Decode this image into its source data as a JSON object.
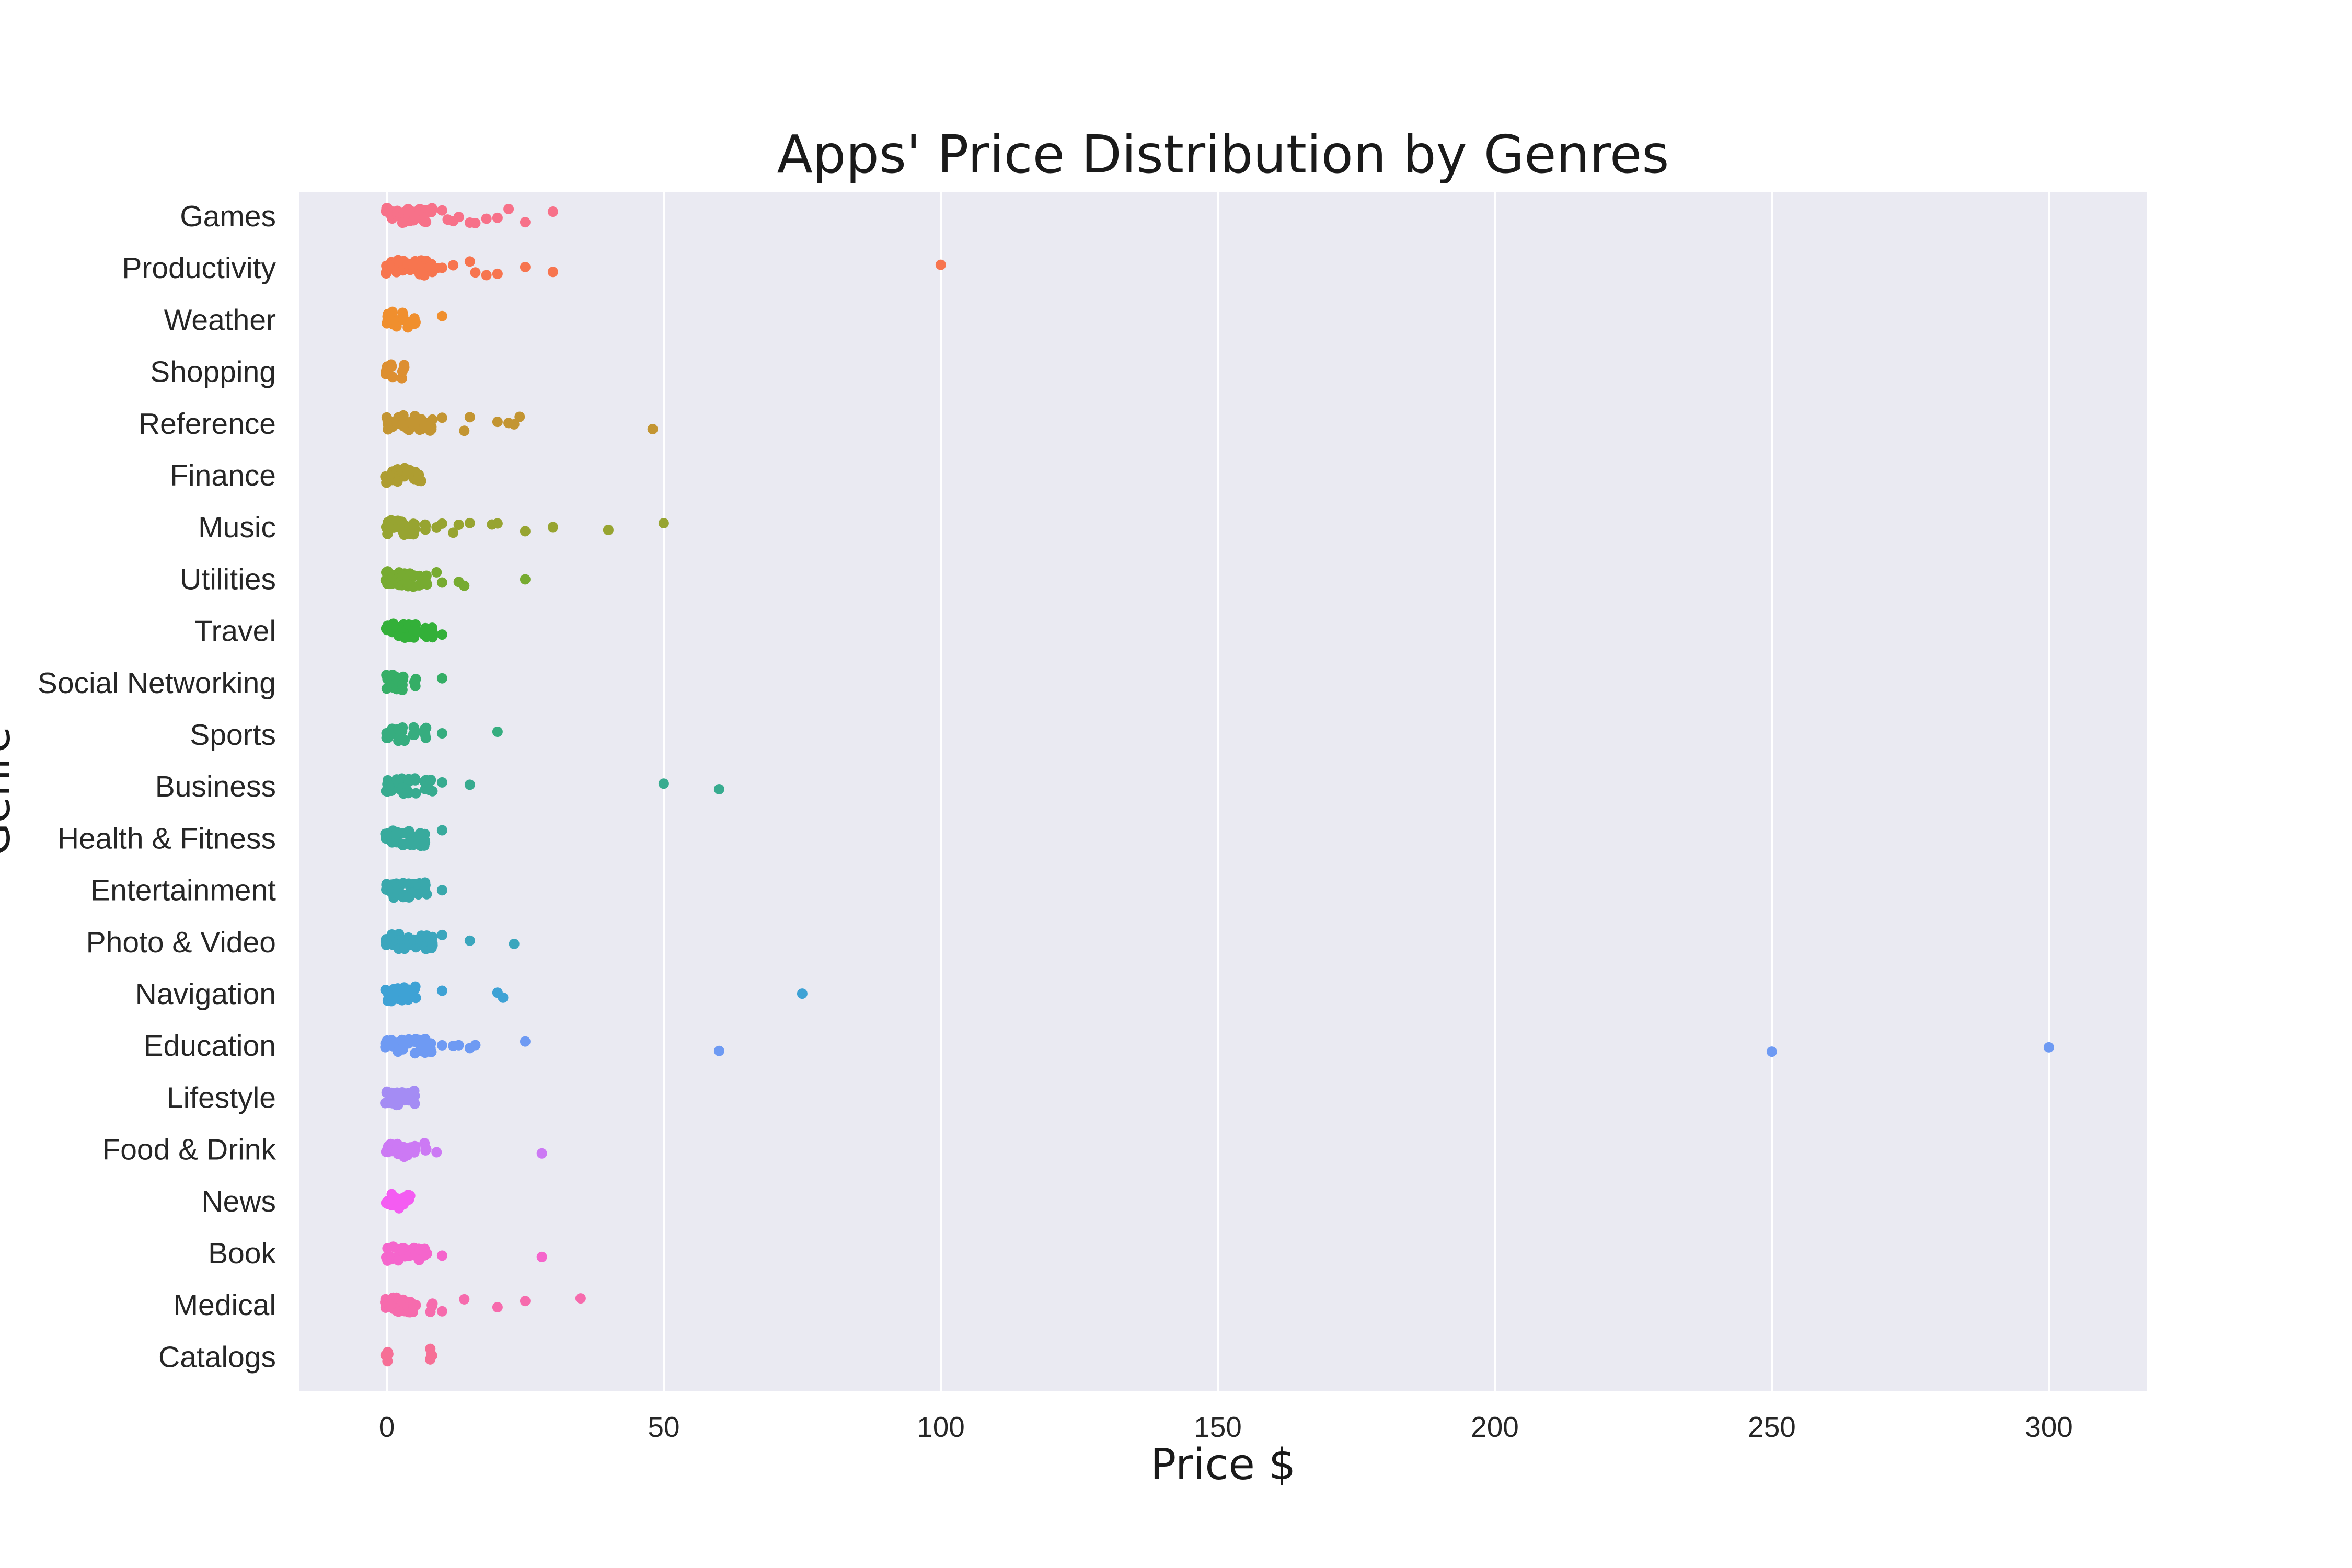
{
  "chart_data": {
    "type": "scatter",
    "title": "Apps' Price Distribution by Genres",
    "xlabel": "Price $",
    "ylabel": "Genre",
    "xlim": [
      -15,
      315
    ],
    "xticks": [
      0,
      50,
      100,
      150,
      200,
      250,
      300
    ],
    "grid": true,
    "background": "#eaeaf2",
    "categories": [
      "Games",
      "Productivity",
      "Weather",
      "Shopping",
      "Reference",
      "Finance",
      "Music",
      "Utilities",
      "Travel",
      "Social Networking",
      "Sports",
      "Business",
      "Health & Fitness",
      "Entertainment",
      "Photo & Video",
      "Navigation",
      "Education",
      "Lifestyle",
      "Food & Drink",
      "News",
      "Book",
      "Medical",
      "Catalogs"
    ],
    "colors": [
      "#f77189",
      "#f7754f",
      "#f08f2e",
      "#dd8f31",
      "#c39532",
      "#ae9d31",
      "#97a431",
      "#77ab31",
      "#33b039",
      "#35ae66",
      "#36ad7f",
      "#37ab8f",
      "#38aa9d",
      "#39a8ac",
      "#3ba6bd",
      "#3ea2d5",
      "#6e9af3",
      "#a48cf4",
      "#cc79f4",
      "#f45cf2",
      "#f565cc",
      "#f66bad",
      "#f66f96"
    ],
    "series": [
      {
        "genre": "Games",
        "values": [
          0,
          0.99,
          1.99,
          2.99,
          3.99,
          4.99,
          5.99,
          6.99,
          7.99,
          9.99,
          10.99,
          11.99,
          12.99,
          14.99,
          15.99,
          17.99,
          19.99,
          21.99,
          24.99,
          29.99
        ]
      },
      {
        "genre": "Productivity",
        "values": [
          0,
          0.99,
          1.99,
          2.99,
          3.99,
          4.99,
          5.99,
          6.99,
          7.99,
          8.99,
          9.99,
          11.99,
          14.99,
          15.99,
          17.99,
          19.99,
          24.99,
          29.99,
          99.99
        ]
      },
      {
        "genre": "Weather",
        "values": [
          0,
          0.99,
          1.99,
          2.99,
          3.99,
          4.99,
          9.99
        ]
      },
      {
        "genre": "Shopping",
        "values": [
          0,
          0.99,
          2.99
        ]
      },
      {
        "genre": "Reference",
        "values": [
          0,
          0.99,
          1.99,
          2.99,
          3.99,
          4.99,
          5.99,
          6.99,
          7.99,
          9.99,
          13.99,
          14.99,
          19.99,
          21.99,
          22.99,
          23.99,
          47.99
        ]
      },
      {
        "genre": "Finance",
        "values": [
          0,
          0.99,
          1.99,
          2.99,
          3.99,
          4.99,
          5.99
        ]
      },
      {
        "genre": "Music",
        "values": [
          0,
          0.99,
          1.99,
          2.99,
          3.99,
          4.99,
          6.99,
          8.99,
          9.99,
          11.99,
          12.99,
          14.99,
          18.99,
          19.99,
          24.99,
          29.99,
          39.99,
          49.99
        ]
      },
      {
        "genre": "Utilities",
        "values": [
          0,
          0.99,
          1.99,
          2.99,
          3.99,
          4.99,
          5.99,
          6.99,
          8.99,
          9.99,
          12.99,
          13.99,
          24.99
        ]
      },
      {
        "genre": "Travel",
        "values": [
          0,
          0.99,
          1.99,
          2.99,
          3.99,
          4.99,
          6.99,
          7.99,
          9.99
        ]
      },
      {
        "genre": "Social Networking",
        "values": [
          0,
          0.99,
          1.99,
          2.99,
          4.99,
          9.99
        ]
      },
      {
        "genre": "Sports",
        "values": [
          0,
          0.99,
          1.99,
          2.99,
          4.99,
          6.99,
          9.99,
          19.99
        ]
      },
      {
        "genre": "Business",
        "values": [
          0,
          0.99,
          1.99,
          2.99,
          3.99,
          4.99,
          6.99,
          7.99,
          9.99,
          14.99,
          49.99,
          59.99
        ]
      },
      {
        "genre": "Health & Fitness",
        "values": [
          0,
          0.99,
          1.99,
          2.99,
          3.99,
          4.99,
          5.99,
          6.99,
          9.99
        ]
      },
      {
        "genre": "Entertainment",
        "values": [
          0,
          0.99,
          1.99,
          2.99,
          3.99,
          4.99,
          5.99,
          6.99,
          9.99
        ]
      },
      {
        "genre": "Photo & Video",
        "values": [
          0,
          0.99,
          1.99,
          2.99,
          3.99,
          4.99,
          5.99,
          6.99,
          7.99,
          9.99,
          14.99,
          22.99
        ]
      },
      {
        "genre": "Navigation",
        "values": [
          0,
          0.99,
          1.99,
          2.99,
          3.99,
          4.99,
          9.99,
          19.99,
          20.99,
          74.99
        ]
      },
      {
        "genre": "Education",
        "values": [
          0,
          0.99,
          1.99,
          2.99,
          3.99,
          4.99,
          5.99,
          6.99,
          7.99,
          9.99,
          11.99,
          12.99,
          14.99,
          15.99,
          24.99,
          59.99,
          249.99,
          299.99
        ]
      },
      {
        "genre": "Lifestyle",
        "values": [
          0,
          0.99,
          1.99,
          2.99,
          3.99,
          4.99
        ]
      },
      {
        "genre": "Food & Drink",
        "values": [
          0,
          0.99,
          1.99,
          2.99,
          3.99,
          4.99,
          6.99,
          8.99,
          27.99
        ]
      },
      {
        "genre": "News",
        "values": [
          0,
          0.99,
          1.99,
          2.99,
          3.99
        ]
      },
      {
        "genre": "Book",
        "values": [
          0,
          0.99,
          1.99,
          2.99,
          3.99,
          4.99,
          5.99,
          6.99,
          9.99,
          27.99
        ]
      },
      {
        "genre": "Medical",
        "values": [
          0,
          0.99,
          1.99,
          2.99,
          3.99,
          4.99,
          7.99,
          9.99,
          13.99,
          19.99,
          24.99,
          34.99
        ]
      },
      {
        "genre": "Catalogs",
        "values": [
          0,
          7.99
        ]
      }
    ]
  }
}
